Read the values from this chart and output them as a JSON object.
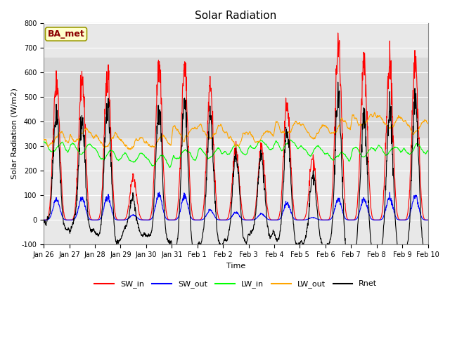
{
  "title": "Solar Radiation",
  "ylabel": "Solar Radiation (W/m2)",
  "xlabel": "Time",
  "ylim": [
    -100,
    800
  ],
  "yticks": [
    -100,
    0,
    100,
    200,
    300,
    400,
    500,
    600,
    700,
    800
  ],
  "annotation": "BA_met",
  "annotation_facecolor": "#ffffcc",
  "annotation_edgecolor": "#999900",
  "annotation_textcolor": "#8B0000",
  "bg_color": "#ffffff",
  "plot_bg_color": "#ffffff",
  "legend_items": [
    "SW_in",
    "SW_out",
    "LW_in",
    "LW_out",
    "Rnet"
  ],
  "legend_colors": [
    "red",
    "blue",
    "lime",
    "orange",
    "black"
  ],
  "num_days": 15,
  "xtick_labels": [
    "Jan 26",
    "Jan 27",
    "Jan 28",
    "Jan 29",
    "Jan 30",
    "Jan 31",
    "Feb 1",
    "Feb 2",
    "Feb 3",
    "Feb 4",
    "Feb 5",
    "Feb 6",
    "Feb 7",
    "Feb 8",
    "Feb 9",
    "Feb 10"
  ],
  "SW_in_peaks": [
    570,
    575,
    590,
    170,
    615,
    605,
    540,
    285,
    300,
    480,
    250,
    710,
    645,
    635,
    620,
    630
  ],
  "SW_out_peaks": [
    85,
    90,
    95,
    20,
    100,
    95,
    40,
    30,
    25,
    70,
    10,
    85,
    85,
    90,
    95,
    10
  ],
  "LW_in_base": [
    295,
    290,
    265,
    250,
    240,
    265,
    270,
    285,
    305,
    310,
    280,
    260,
    275,
    285,
    290,
    295
  ],
  "LW_out_base": [
    330,
    345,
    320,
    310,
    320,
    355,
    355,
    330,
    340,
    370,
    360,
    380,
    405,
    395,
    380,
    395
  ],
  "line_width": 0.8,
  "grid_color": "#dddddd",
  "grid_lw": 0.5,
  "band1_color": "#e8e8e8",
  "band2_color": "#d8d8d8",
  "title_fontsize": 11,
  "tick_fontsize": 7,
  "label_fontsize": 8,
  "legend_fontsize": 8
}
